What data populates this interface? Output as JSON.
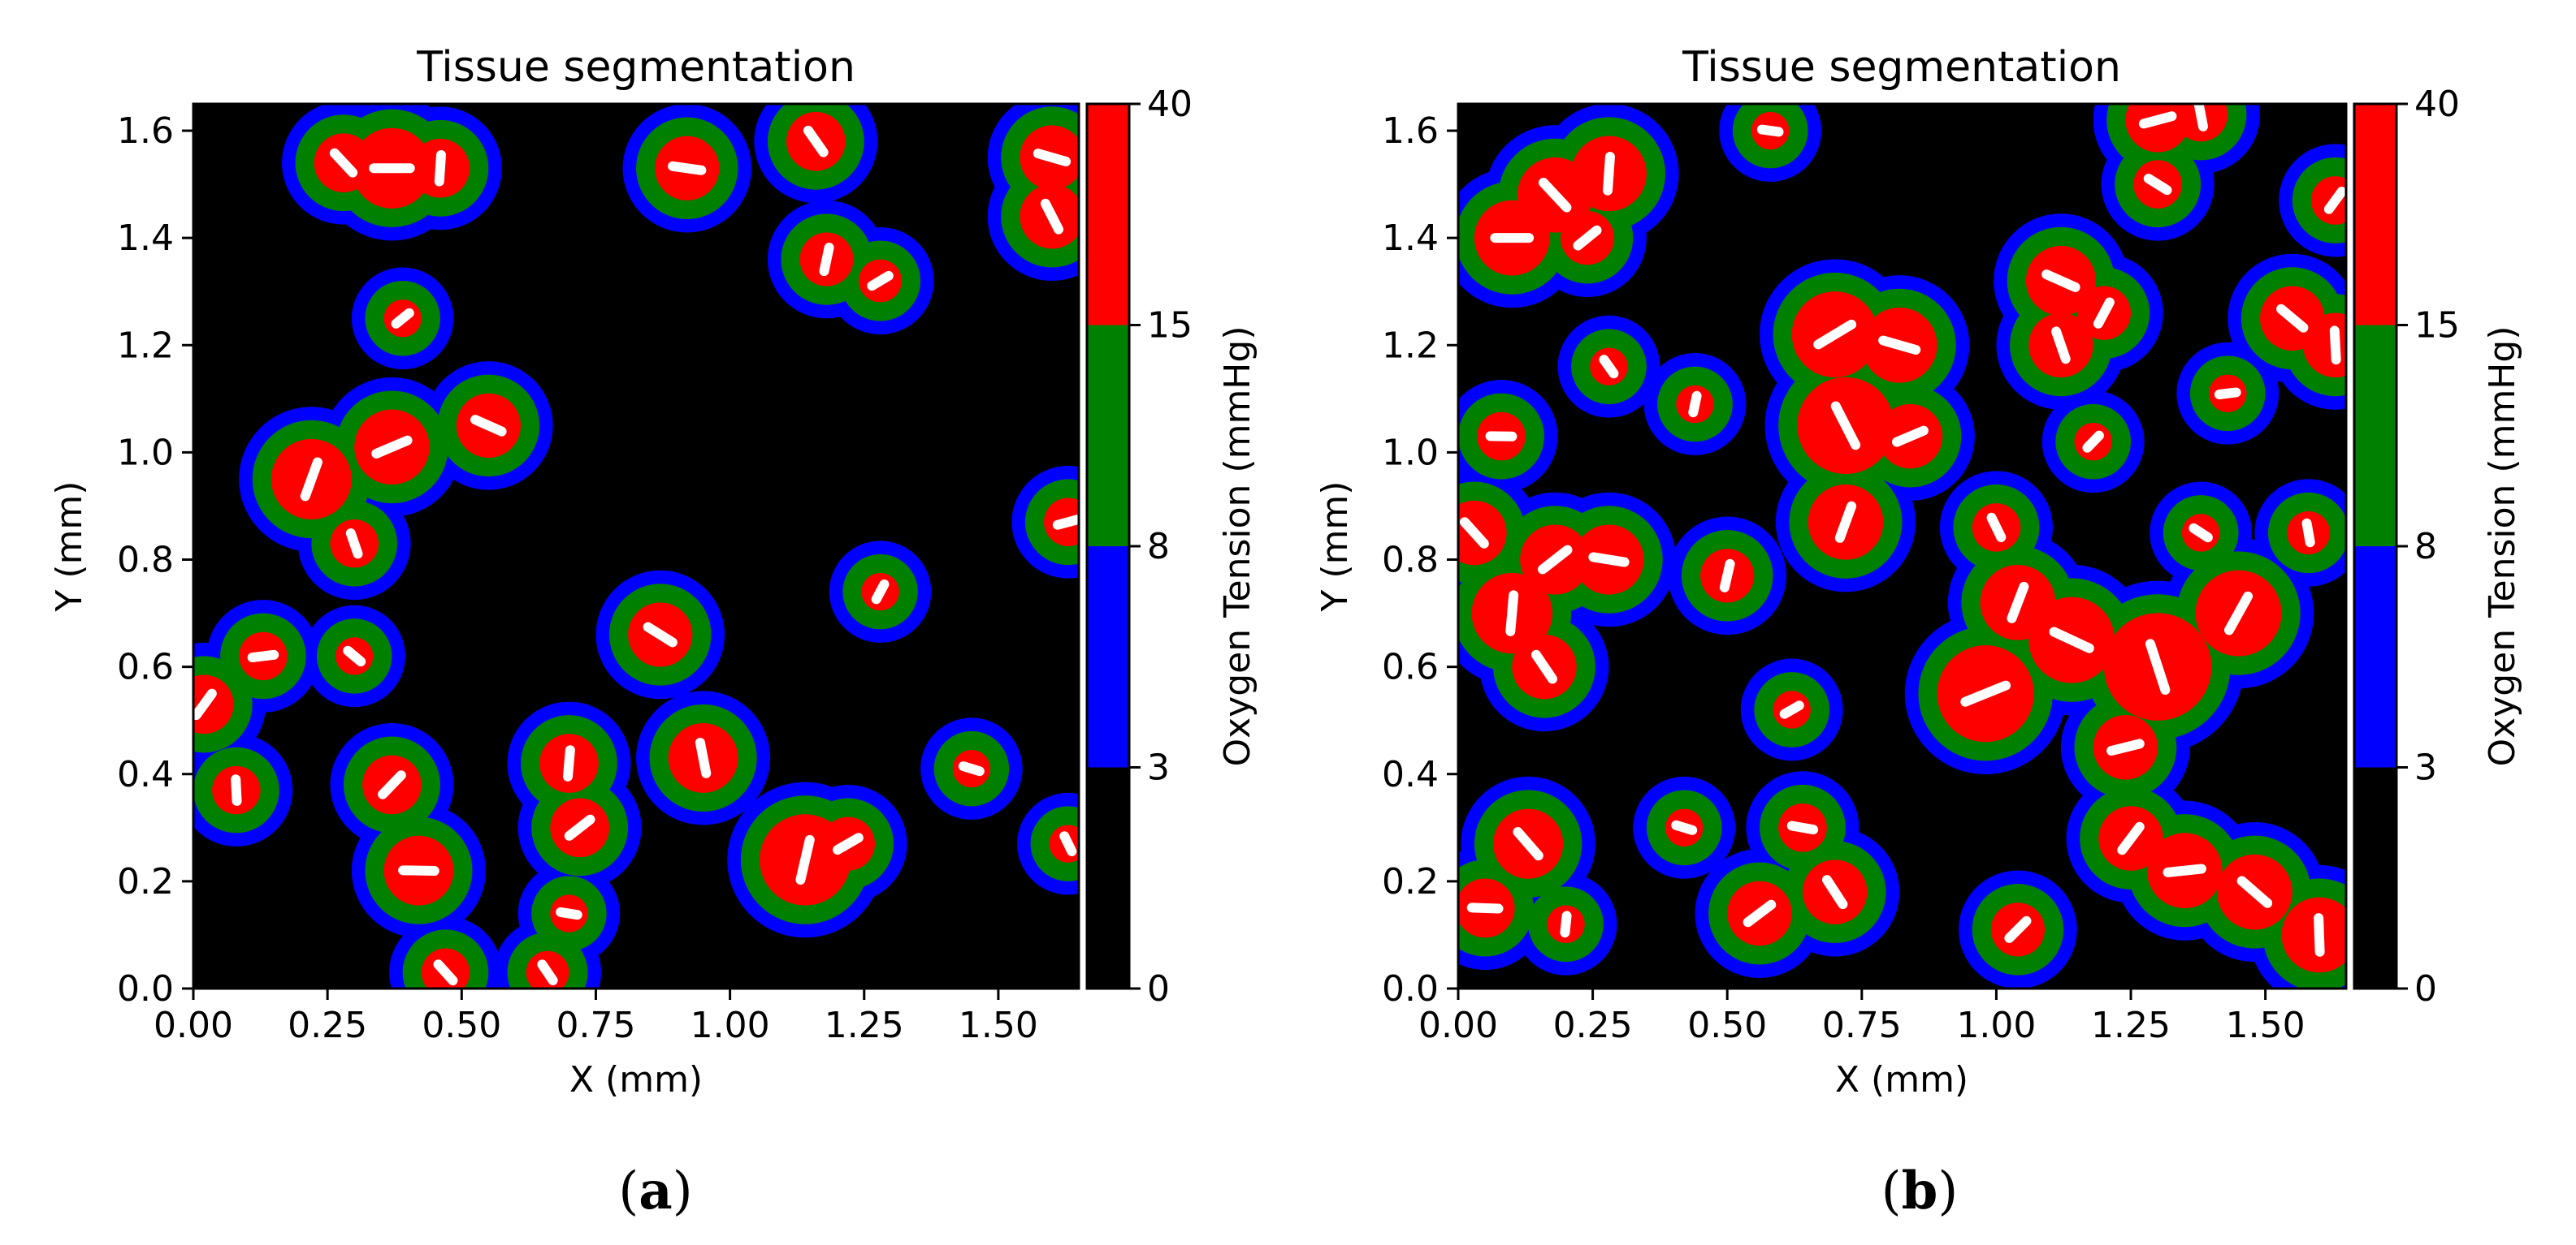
{
  "chart_data": [
    {
      "type": "heatmap",
      "panel_label": "a",
      "title": "Tissue segmentation",
      "xlabel": "X (mm)",
      "ylabel": "Y (mm)",
      "xlim": [
        0.0,
        1.65
      ],
      "ylim": [
        0.0,
        1.65
      ],
      "xticks": [
        "0.00",
        "0.25",
        "0.50",
        "0.75",
        "1.00",
        "1.25",
        "1.50"
      ],
      "yticks": [
        "0.0",
        "0.2",
        "0.4",
        "0.6",
        "0.8",
        "1.0",
        "1.2",
        "1.4",
        "1.6"
      ],
      "colorbar": {
        "label": "Oxygen Tension (mmHg)",
        "levels": [
          0,
          3,
          8,
          15,
          40
        ],
        "tick_labels": [
          "0",
          "3",
          "8",
          "15",
          "40"
        ],
        "colors": [
          "#000000",
          "#0000ff",
          "#008000",
          "#ff0000"
        ]
      },
      "vessel_color": "#ffffff",
      "regions": [
        {
          "x": 0.37,
          "y": 1.53,
          "r": 0.075
        },
        {
          "x": 0.28,
          "y": 1.54,
          "r": 0.055
        },
        {
          "x": 0.46,
          "y": 1.53,
          "r": 0.055
        },
        {
          "x": 0.39,
          "y": 1.25,
          "r": 0.035
        },
        {
          "x": 0.92,
          "y": 1.53,
          "r": 0.06
        },
        {
          "x": 1.16,
          "y": 1.58,
          "r": 0.055
        },
        {
          "x": 1.18,
          "y": 1.36,
          "r": 0.05
        },
        {
          "x": 1.28,
          "y": 1.32,
          "r": 0.04
        },
        {
          "x": 1.6,
          "y": 1.55,
          "r": 0.06
        },
        {
          "x": 1.6,
          "y": 1.44,
          "r": 0.06
        },
        {
          "x": 0.22,
          "y": 0.95,
          "r": 0.075
        },
        {
          "x": 0.37,
          "y": 1.01,
          "r": 0.07
        },
        {
          "x": 0.55,
          "y": 1.05,
          "r": 0.06
        },
        {
          "x": 0.3,
          "y": 0.83,
          "r": 0.045
        },
        {
          "x": 1.28,
          "y": 0.74,
          "r": 0.035
        },
        {
          "x": 1.63,
          "y": 0.87,
          "r": 0.045
        },
        {
          "x": 0.87,
          "y": 0.66,
          "r": 0.06
        },
        {
          "x": 0.95,
          "y": 0.43,
          "r": 0.065
        },
        {
          "x": 0.02,
          "y": 0.53,
          "r": 0.055
        },
        {
          "x": 0.13,
          "y": 0.62,
          "r": 0.045
        },
        {
          "x": 0.3,
          "y": 0.62,
          "r": 0.035
        },
        {
          "x": 0.08,
          "y": 0.37,
          "r": 0.045
        },
        {
          "x": 0.37,
          "y": 0.38,
          "r": 0.055
        },
        {
          "x": 0.42,
          "y": 0.22,
          "r": 0.065
        },
        {
          "x": 0.47,
          "y": 0.03,
          "r": 0.045
        },
        {
          "x": 0.7,
          "y": 0.42,
          "r": 0.055
        },
        {
          "x": 0.72,
          "y": 0.3,
          "r": 0.055
        },
        {
          "x": 0.7,
          "y": 0.14,
          "r": 0.035
        },
        {
          "x": 0.66,
          "y": 0.03,
          "r": 0.04
        },
        {
          "x": 1.14,
          "y": 0.24,
          "r": 0.085
        },
        {
          "x": 1.22,
          "y": 0.27,
          "r": 0.05
        },
        {
          "x": 1.45,
          "y": 0.41,
          "r": 0.035
        },
        {
          "x": 1.63,
          "y": 0.27,
          "r": 0.035
        }
      ]
    },
    {
      "type": "heatmap",
      "panel_label": "b",
      "title": "Tissue segmentation",
      "xlabel": "X (mm)",
      "ylabel": "Y (mm)",
      "xlim": [
        0.0,
        1.65
      ],
      "ylim": [
        0.0,
        1.65
      ],
      "xticks": [
        "0.00",
        "0.25",
        "0.50",
        "0.75",
        "1.00",
        "1.25",
        "1.50"
      ],
      "yticks": [
        "0.0",
        "0.2",
        "0.4",
        "0.6",
        "0.8",
        "1.0",
        "1.2",
        "1.4",
        "1.6"
      ],
      "colorbar": {
        "label": "Oxygen Tension (mmHg)",
        "levels": [
          0,
          3,
          8,
          15,
          40
        ],
        "tick_labels": [
          "0",
          "3",
          "8",
          "15",
          "40"
        ],
        "colors": [
          "#000000",
          "#0000ff",
          "#008000",
          "#ff0000"
        ]
      },
      "vessel_color": "#ffffff",
      "regions": [
        {
          "x": 0.1,
          "y": 1.4,
          "r": 0.07
        },
        {
          "x": 0.18,
          "y": 1.48,
          "r": 0.07
        },
        {
          "x": 0.28,
          "y": 1.52,
          "r": 0.07
        },
        {
          "x": 0.24,
          "y": 1.4,
          "r": 0.05
        },
        {
          "x": 0.58,
          "y": 1.6,
          "r": 0.035
        },
        {
          "x": 0.28,
          "y": 1.16,
          "r": 0.035
        },
        {
          "x": 0.44,
          "y": 1.09,
          "r": 0.035
        },
        {
          "x": 0.7,
          "y": 1.22,
          "r": 0.08
        },
        {
          "x": 0.82,
          "y": 1.2,
          "r": 0.07
        },
        {
          "x": 0.72,
          "y": 1.05,
          "r": 0.09
        },
        {
          "x": 0.72,
          "y": 0.87,
          "r": 0.07
        },
        {
          "x": 0.84,
          "y": 1.03,
          "r": 0.06
        },
        {
          "x": 1.12,
          "y": 1.32,
          "r": 0.065
        },
        {
          "x": 1.12,
          "y": 1.2,
          "r": 0.06
        },
        {
          "x": 1.2,
          "y": 1.26,
          "r": 0.05
        },
        {
          "x": 1.3,
          "y": 1.62,
          "r": 0.06
        },
        {
          "x": 1.3,
          "y": 1.5,
          "r": 0.045
        },
        {
          "x": 1.38,
          "y": 1.63,
          "r": 0.05
        },
        {
          "x": 1.63,
          "y": 1.47,
          "r": 0.045
        },
        {
          "x": 1.43,
          "y": 1.11,
          "r": 0.035
        },
        {
          "x": 1.55,
          "y": 1.25,
          "r": 0.06
        },
        {
          "x": 1.63,
          "y": 1.2,
          "r": 0.06
        },
        {
          "x": 1.18,
          "y": 1.02,
          "r": 0.035
        },
        {
          "x": 0.08,
          "y": 1.03,
          "r": 0.045
        },
        {
          "x": 0.03,
          "y": 0.85,
          "r": 0.06
        },
        {
          "x": 0.1,
          "y": 0.7,
          "r": 0.075
        },
        {
          "x": 0.18,
          "y": 0.8,
          "r": 0.065
        },
        {
          "x": 0.28,
          "y": 0.8,
          "r": 0.065
        },
        {
          "x": 0.16,
          "y": 0.6,
          "r": 0.06
        },
        {
          "x": 0.5,
          "y": 0.77,
          "r": 0.05
        },
        {
          "x": 0.62,
          "y": 0.52,
          "r": 0.035
        },
        {
          "x": 0.42,
          "y": 0.3,
          "r": 0.035
        },
        {
          "x": 1.0,
          "y": 0.86,
          "r": 0.045
        },
        {
          "x": 1.04,
          "y": 0.72,
          "r": 0.07
        },
        {
          "x": 0.98,
          "y": 0.55,
          "r": 0.09
        },
        {
          "x": 1.14,
          "y": 0.65,
          "r": 0.08
        },
        {
          "x": 1.3,
          "y": 0.6,
          "r": 0.1
        },
        {
          "x": 1.45,
          "y": 0.7,
          "r": 0.08
        },
        {
          "x": 1.24,
          "y": 0.45,
          "r": 0.06
        },
        {
          "x": 1.38,
          "y": 0.85,
          "r": 0.035
        },
        {
          "x": 1.58,
          "y": 0.85,
          "r": 0.04
        },
        {
          "x": 1.25,
          "y": 0.28,
          "r": 0.06
        },
        {
          "x": 1.35,
          "y": 0.22,
          "r": 0.07
        },
        {
          "x": 1.48,
          "y": 0.18,
          "r": 0.07
        },
        {
          "x": 1.6,
          "y": 0.1,
          "r": 0.07
        },
        {
          "x": 1.04,
          "y": 0.11,
          "r": 0.05
        },
        {
          "x": 0.05,
          "y": 0.15,
          "r": 0.055
        },
        {
          "x": 0.13,
          "y": 0.27,
          "r": 0.065
        },
        {
          "x": 0.2,
          "y": 0.12,
          "r": 0.035
        },
        {
          "x": 0.56,
          "y": 0.14,
          "r": 0.06
        },
        {
          "x": 0.64,
          "y": 0.3,
          "r": 0.045
        },
        {
          "x": 0.7,
          "y": 0.18,
          "r": 0.06
        }
      ]
    }
  ]
}
